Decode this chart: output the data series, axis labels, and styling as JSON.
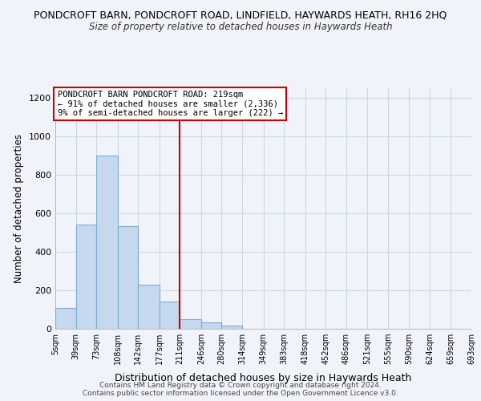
{
  "title": "PONDCROFT BARN, PONDCROFT ROAD, LINDFIELD, HAYWARDS HEATH, RH16 2HQ",
  "subtitle": "Size of property relative to detached houses in Haywards Heath",
  "xlabel": "Distribution of detached houses by size in Haywards Heath",
  "ylabel": "Number of detached properties",
  "bar_color": "#c5d8ee",
  "bar_edge_color": "#7aadd4",
  "vline_x": 211,
  "vline_color": "#cc0000",
  "bin_edges": [
    5,
    39,
    73,
    108,
    142,
    177,
    211,
    246,
    280,
    314,
    349,
    383,
    418,
    452,
    486,
    521,
    555,
    590,
    624,
    659,
    693
  ],
  "bar_heights": [
    110,
    540,
    900,
    535,
    230,
    140,
    50,
    35,
    18,
    0,
    0,
    0,
    0,
    0,
    0,
    0,
    0,
    0,
    0,
    0
  ],
  "tick_labels": [
    "5sqm",
    "39sqm",
    "73sqm",
    "108sqm",
    "142sqm",
    "177sqm",
    "211sqm",
    "246sqm",
    "280sqm",
    "314sqm",
    "349sqm",
    "383sqm",
    "418sqm",
    "452sqm",
    "486sqm",
    "521sqm",
    "555sqm",
    "590sqm",
    "624sqm",
    "659sqm",
    "693sqm"
  ],
  "ylim": [
    0,
    1250
  ],
  "yticks": [
    0,
    200,
    400,
    600,
    800,
    1000,
    1200
  ],
  "annotation_text": "PONDCROFT BARN PONDCROFT ROAD: 219sqm\n← 91% of detached houses are smaller (2,336)\n9% of semi-detached houses are larger (222) →",
  "footnote1": "Contains HM Land Registry data © Crown copyright and database right 2024.",
  "footnote2": "Contains public sector information licensed under the Open Government Licence v3.0.",
  "bg_color": "#f0f4fa",
  "grid_color": "#c8d8e8",
  "box_color": "#cc0000",
  "fig_width": 6.0,
  "fig_height": 5.0
}
